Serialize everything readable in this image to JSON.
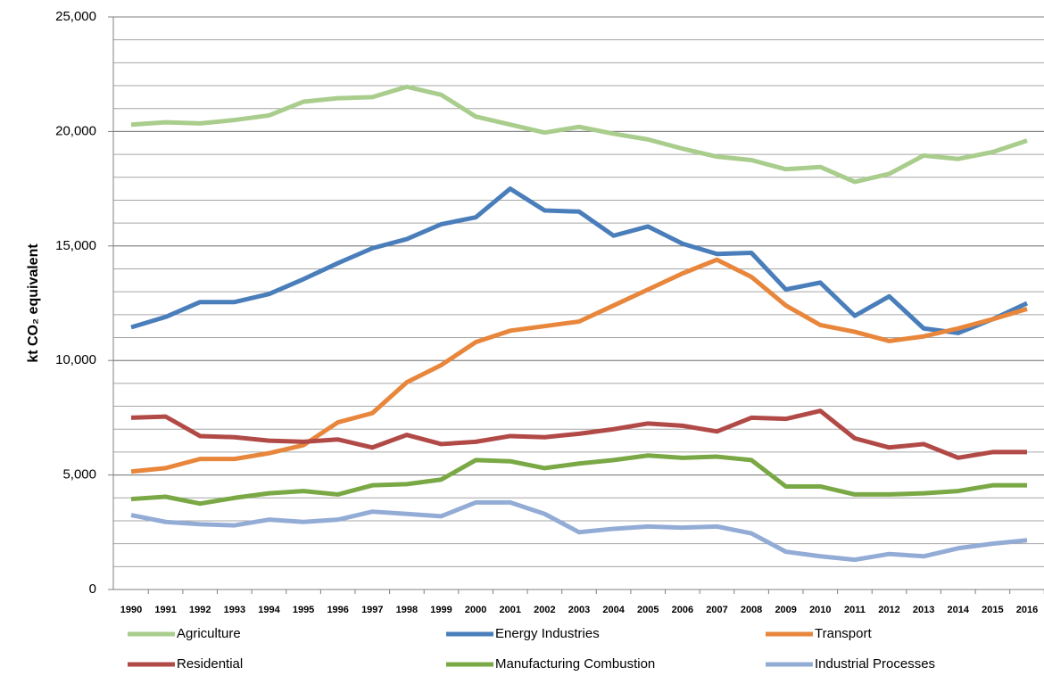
{
  "chart_data": {
    "type": "line",
    "y_label": "kt CO₂ equivalent",
    "categories": [
      "1990",
      "1991",
      "1992",
      "1993",
      "1994",
      "1995",
      "1996",
      "1997",
      "1998",
      "1999",
      "2000",
      "2001",
      "2002",
      "2003",
      "2004",
      "2005",
      "2006",
      "2007",
      "2008",
      "2009",
      "2010",
      "2011",
      "2012",
      "2013",
      "2014",
      "2015",
      "2016"
    ],
    "series": [
      {
        "name": "Agriculture",
        "color": "#a9cd8c",
        "values": [
          20300,
          20400,
          20350,
          20500,
          20700,
          21300,
          21450,
          21500,
          21950,
          21600,
          20650,
          20300,
          19950,
          20200,
          19900,
          19650,
          19250,
          18900,
          18750,
          18350,
          18450,
          17800,
          18150,
          18950,
          18800,
          19100,
          19600
        ]
      },
      {
        "name": "Energy Industries",
        "color": "#4a7ebb",
        "values": [
          11450,
          11900,
          12550,
          12550,
          12900,
          13550,
          14250,
          14900,
          15300,
          15950,
          16250,
          17500,
          16550,
          16500,
          15450,
          15850,
          15100,
          14650,
          14700,
          13100,
          13400,
          11950,
          12800,
          11400,
          11200,
          11800,
          12500
        ]
      },
      {
        "name": "Transport",
        "color": "#e8863c",
        "values": [
          5150,
          5300,
          5700,
          5700,
          5950,
          6300,
          7300,
          7700,
          9050,
          9800,
          10800,
          11300,
          11500,
          11700,
          12400,
          13100,
          13800,
          14400,
          13650,
          12400,
          11550,
          11250,
          10850,
          11050,
          11400,
          11800,
          12250
        ]
      },
      {
        "name": "Residential",
        "color": "#b14a47",
        "values": [
          7500,
          7550,
          6700,
          6650,
          6500,
          6450,
          6550,
          6200,
          6750,
          6350,
          6450,
          6700,
          6650,
          6800,
          7000,
          7250,
          7150,
          6900,
          7500,
          7450,
          7800,
          6600,
          6200,
          6350,
          5750,
          6000,
          6000
        ]
      },
      {
        "name": "Manufacturing Combustion",
        "color": "#79a845",
        "values": [
          3950,
          4050,
          3750,
          4000,
          4200,
          4300,
          4150,
          4550,
          4600,
          4800,
          5650,
          5600,
          5300,
          5500,
          5650,
          5850,
          5750,
          5800,
          5650,
          4500,
          4500,
          4150,
          4150,
          4200,
          4300,
          4550,
          4550
        ]
      },
      {
        "name": "Industrial Processes",
        "color": "#93acd6",
        "values": [
          3250,
          2950,
          2850,
          2800,
          3050,
          2950,
          3050,
          3400,
          3300,
          3200,
          3800,
          3800,
          3300,
          2500,
          2650,
          2750,
          2700,
          2750,
          2450,
          1650,
          1450,
          1300,
          1550,
          1450,
          1800,
          2000,
          2150
        ]
      }
    ],
    "ylim": [
      0,
      25000
    ],
    "yticks": [
      0,
      {
        "value": 5000,
        "label": "5,000"
      },
      {
        "value": 10000,
        "label": "10,000"
      },
      {
        "value": 15000,
        "label": "15,000"
      },
      {
        "value": 20000,
        "label": "20,000"
      },
      {
        "value": 25000,
        "label": "25,000"
      }
    ],
    "minor_grid_step": 1000,
    "grid": true,
    "legend": "bottom"
  }
}
